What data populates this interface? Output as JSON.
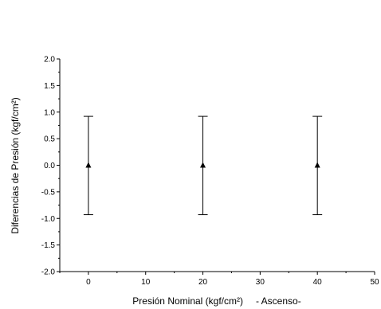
{
  "chart_data": {
    "type": "scatter",
    "xlabel": "Presión Nominal (kgf/cm²)",
    "xlabel_suffix": "- Ascenso-",
    "ylabel": "Diferencias de Presión (kgf/cm²)",
    "xlim": [
      -5,
      50
    ],
    "ylim": [
      -2.0,
      2.0
    ],
    "x_ticks": [
      0,
      10,
      20,
      30,
      40,
      50
    ],
    "x_tick_labels": [
      "0",
      "10",
      "20",
      "30",
      "40",
      "50"
    ],
    "y_ticks": [
      -2.0,
      -1.5,
      -1.0,
      -0.5,
      0.0,
      0.5,
      1.0,
      1.5,
      2.0
    ],
    "y_tick_labels": [
      "-2.0",
      "-1.5",
      "-1.0",
      "-0.5",
      "0.0",
      "0.5",
      "1.0",
      "1.5",
      "2.0"
    ],
    "grid": false,
    "marker": "triangle",
    "color": "#000000",
    "series": [
      {
        "x": [
          0,
          20,
          40
        ],
        "y": [
          0.0,
          0.0,
          0.0
        ],
        "error_low": [
          -0.93,
          -0.93,
          -0.93
        ],
        "error_high": [
          0.92,
          0.92,
          0.92
        ]
      }
    ]
  }
}
